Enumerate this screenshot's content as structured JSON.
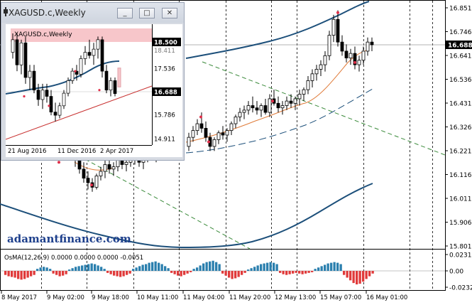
{
  "main_chart": {
    "colors": {
      "bull": "#1a1a1a",
      "ma_blue": "#1c4f7a",
      "ma_orange": "#e07b39",
      "ma_dashed": "#1c4f7a",
      "trend_green": "#3a8a3a",
      "fractal": "#e0304a",
      "osma_pos": "#2a7fae",
      "osma_neg": "#e03a3a"
    },
    "price_labels": [
      "16.851",
      "16.746",
      "16.641",
      "16.536",
      "16.431",
      "16.326",
      "16.221",
      "16.116",
      "16.011",
      "15.906",
      "15.801"
    ],
    "current_price": "16.688",
    "osma_label": "OsMA(12,26,9) 0.0000 0.0000 0.0000 -0.0051",
    "osma_scale": [
      "0.0231",
      "0.00",
      "-0.0232"
    ],
    "time_labels": [
      "8 May 2017",
      "9 May 02:00",
      "9 May 18:00",
      "10 May 11:00",
      "11 May 04:00",
      "11 May 20:00",
      "12 May 13:00",
      "15 May 07:00",
      "16 May 01:00"
    ]
  },
  "watermark": "adamantfinance.com",
  "inset": {
    "window_title": "XAGUSD.c,Weekly",
    "chart_title": "XAGUSD.c,Weekly",
    "buttons": {
      "minimize": "_",
      "restore": "□",
      "close": "✕"
    },
    "price_labels": [
      "18.500",
      "17.536",
      "16.688",
      "15.786",
      "14.911"
    ],
    "price_label_hidden": "18.411",
    "time_labels": [
      "21 Aug 2016",
      "11 Dec 2016",
      "2 Apr 2017"
    ]
  }
}
